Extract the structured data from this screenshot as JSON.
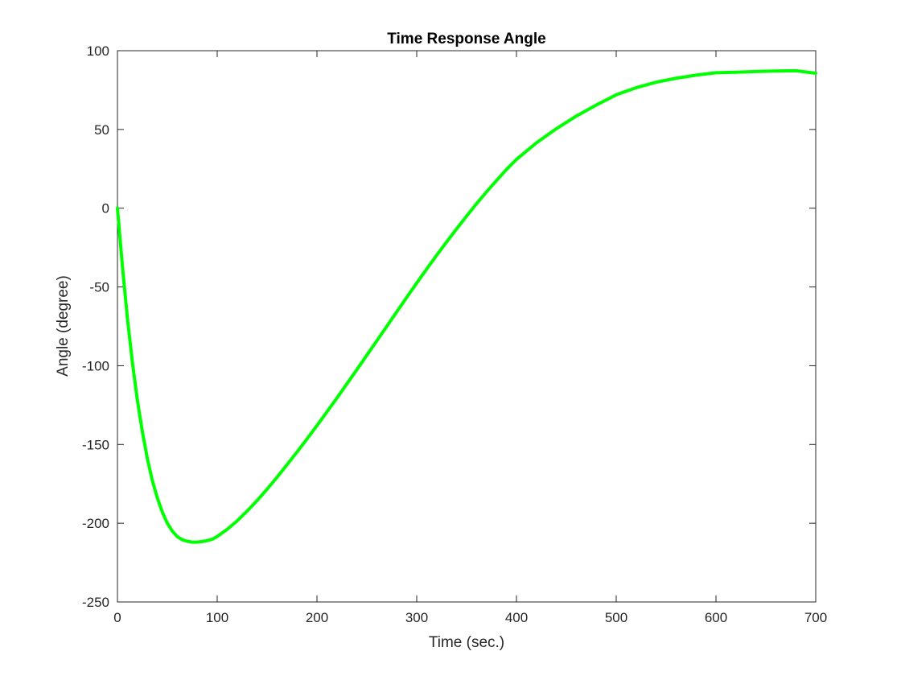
{
  "chart_data": {
    "type": "line",
    "title": "Time Response Angle",
    "xlabel": "Time (sec.)",
    "ylabel": "Angle (degree)",
    "xlim": [
      0,
      700
    ],
    "ylim": [
      -250,
      100
    ],
    "xticks": [
      0,
      100,
      200,
      300,
      400,
      500,
      600,
      700
    ],
    "yticks": [
      -250,
      -200,
      -150,
      -100,
      -50,
      0,
      50,
      100
    ],
    "xtick_labels": [
      "0",
      "100",
      "200",
      "300",
      "400",
      "500",
      "600",
      "700"
    ],
    "ytick_labels": [
      "-250",
      "-200",
      "-150",
      "-100",
      "-50",
      "0",
      "50",
      "100"
    ],
    "grid": false,
    "series": [
      {
        "color": "#00ff00",
        "x": [
          0,
          5,
          10,
          15,
          20,
          25,
          30,
          35,
          40,
          45,
          50,
          55,
          60,
          65,
          70,
          75,
          80,
          85,
          88,
          95,
          100,
          110,
          120,
          130,
          140,
          150,
          160,
          170,
          180,
          190,
          200,
          210,
          220,
          230,
          240,
          250,
          260,
          270,
          280,
          290,
          300,
          310,
          320,
          330,
          340,
          350,
          360,
          370,
          380,
          390,
          400,
          420,
          440,
          460,
          480,
          500,
          520,
          540,
          560,
          580,
          600,
          620,
          640,
          660,
          680,
          700
        ],
        "y": [
          0,
          -37,
          -70,
          -98,
          -122,
          -142,
          -159,
          -173,
          -184,
          -193,
          -200,
          -205,
          -208.5,
          -210.5,
          -211.5,
          -212,
          -212,
          -211.6,
          -211.3,
          -210.2,
          -208.4,
          -203.9,
          -198.5,
          -192.3,
          -185.6,
          -178.4,
          -170.8,
          -162.8,
          -154.8,
          -146.5,
          -138,
          -129.3,
          -120.5,
          -111.5,
          -102.5,
          -93.3,
          -84.2,
          -75,
          -65.8,
          -56.6,
          -47.5,
          -38.6,
          -29.9,
          -21.4,
          -13.1,
          -5,
          2.9,
          10.4,
          17.6,
          24.6,
          31,
          41.5,
          50.5,
          58.5,
          65.5,
          72,
          76.5,
          80,
          82.5,
          84.5,
          86,
          86.3,
          86.8,
          87.1,
          87.3,
          85.7
        ]
      }
    ]
  }
}
